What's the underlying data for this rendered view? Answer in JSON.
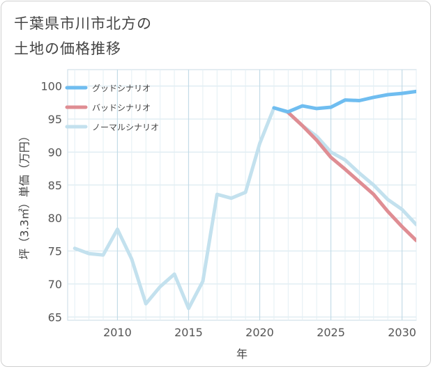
{
  "title_lines": [
    "千葉県市川市北方の",
    "土地の価格推移"
  ],
  "chart_data": {
    "type": "line",
    "xlabel": "年",
    "ylabel": "坪（3.3㎡）単価（万円）",
    "xlim": [
      2006.5,
      2031
    ],
    "ylim": [
      64.5,
      102.5
    ],
    "xticks": [
      2010,
      2015,
      2020,
      2025,
      2030
    ],
    "yticks": [
      65,
      70,
      75,
      80,
      85,
      90,
      95,
      100
    ],
    "legend_position": "top-left",
    "series": [
      {
        "name": "ノーマルシナリオ",
        "color": "#c3e1ee",
        "x": [
          2007,
          2008,
          2009,
          2010,
          2011,
          2012,
          2013,
          2014,
          2015,
          2016,
          2017,
          2018,
          2019,
          2020,
          2021,
          2022,
          2023,
          2024,
          2025,
          2026,
          2027,
          2028,
          2029,
          2030,
          2031
        ],
        "values": [
          75.4,
          74.6,
          74.4,
          78.3,
          73.8,
          67.0,
          69.6,
          71.5,
          66.3,
          70.4,
          83.6,
          83.0,
          83.9,
          91.3,
          96.7,
          96.0,
          94.0,
          92.4,
          90.0,
          88.8,
          86.8,
          85.0,
          82.8,
          81.3,
          79.0
        ]
      },
      {
        "name": "バッドシナリオ",
        "color": "#df8d93",
        "x": [
          2022,
          2023,
          2024,
          2025,
          2026,
          2027,
          2028,
          2029,
          2030,
          2031
        ],
        "values": [
          96.0,
          94.0,
          91.8,
          89.2,
          87.4,
          85.5,
          83.6,
          81.0,
          78.7,
          76.6
        ]
      },
      {
        "name": "グッドシナリオ",
        "color": "#6fbdf0",
        "x": [
          2021,
          2022,
          2023,
          2024,
          2025,
          2026,
          2027,
          2028,
          2029,
          2030,
          2031
        ],
        "values": [
          96.7,
          96.1,
          97.0,
          96.6,
          96.8,
          97.9,
          97.8,
          98.3,
          98.7,
          98.9,
          99.2
        ]
      }
    ],
    "legend_order": [
      "グッドシナリオ",
      "バッドシナリオ",
      "ノーマルシナリオ"
    ]
  }
}
